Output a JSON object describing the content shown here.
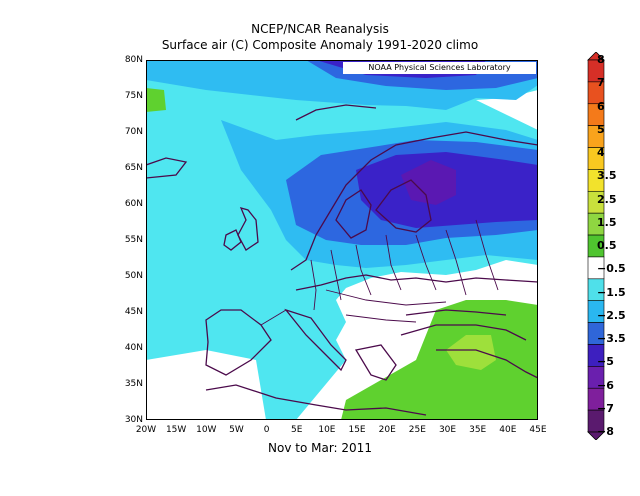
{
  "header": {
    "title": "NCEP/NCAR Reanalysis",
    "subtitle": "Surface air (C) Composite Anomaly 1991-2020 climo"
  },
  "map": {
    "credit": "NOAA Physical Sciences Laboratory",
    "period": "Nov to Mar: 2011",
    "lat_labels": [
      "80N",
      "75N",
      "70N",
      "65N",
      "60N",
      "55N",
      "50N",
      "45N",
      "40N",
      "35N",
      "30N"
    ],
    "lon_labels": [
      "20W",
      "15W",
      "10W",
      "5W",
      "0",
      "5E",
      "10E",
      "15E",
      "20E",
      "25E",
      "30E",
      "35E",
      "40E",
      "45E"
    ]
  },
  "colorbar": {
    "labels": [
      "8",
      "7",
      "6",
      "5",
      "4",
      "3.5",
      "2.5",
      "1.5",
      "0.5",
      "−0.5",
      "−1.5",
      "−2.5",
      "−3.5",
      "−5",
      "−6",
      "−7",
      "−8"
    ],
    "colors": [
      "#d62f27",
      "#e8511f",
      "#f47a1a",
      "#f9a31c",
      "#f9c820",
      "#f2e22c",
      "#c9e03c",
      "#8fd641",
      "#4fc42f",
      "#ffffff",
      "#4fe0ea",
      "#2ab7f0",
      "#2f66d9",
      "#3d1fbf",
      "#6a1fae",
      "#7f1f9c",
      "#5a1a6e"
    ]
  },
  "colors": {
    "border": "#4b0a4b",
    "cyan": "#4fe6f0",
    "light_blue": "#2fbcf2",
    "blue": "#2d67e0",
    "dark_blue": "#3a22c8",
    "purple": "#5a18b2",
    "green": "#5fd12f",
    "light_green": "#9ee03b"
  }
}
